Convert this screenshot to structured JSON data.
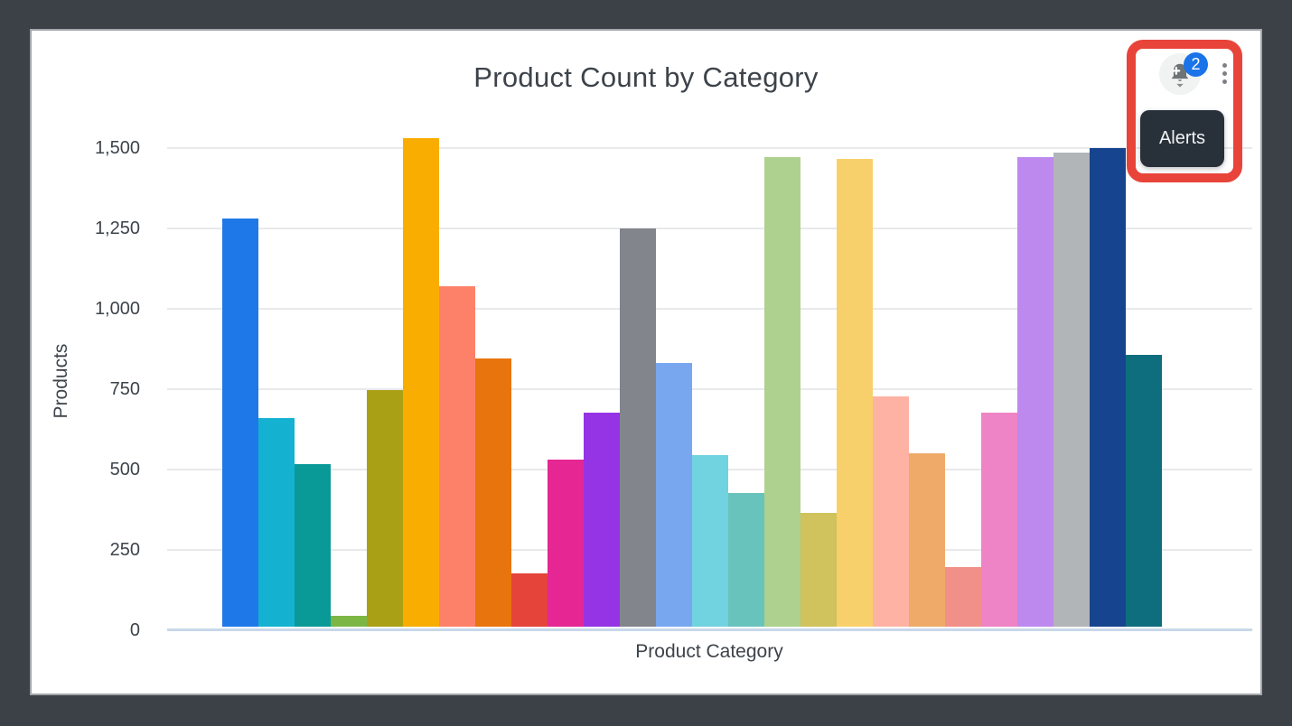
{
  "window": {
    "frame_color": "#3b4146",
    "card_bg": "#ffffff"
  },
  "card": {
    "title": "Product Count by Category"
  },
  "toolbar": {
    "alerts_button": {
      "icon": "bell-add-icon",
      "badge_count": "2",
      "tooltip": "Alerts",
      "badge_color": "#1a73e8"
    },
    "more_menu": {
      "icon": "kebab-menu-icon"
    }
  },
  "annotation": {
    "type": "highlight-box",
    "color": "#e8443a"
  },
  "chart_data": {
    "type": "bar",
    "title": "Product Count by Category",
    "xlabel": "Product Category",
    "ylabel": "Products",
    "ylim": [
      0,
      1500
    ],
    "ytick_labels_top_down": [
      "1,500",
      "1,250",
      "1,000",
      "750",
      "500",
      "250",
      "0"
    ],
    "grid": true,
    "legend": false,
    "x_tick_labels_visible": false,
    "values": [
      1270,
      650,
      505,
      35,
      735,
      1520,
      1060,
      835,
      165,
      520,
      665,
      1240,
      820,
      535,
      415,
      1460,
      355,
      1455,
      715,
      540,
      185,
      665,
      1460,
      1475,
      1490,
      845
    ],
    "colors": [
      "#1f78e8",
      "#14b2d0",
      "#099a97",
      "#7cb746",
      "#aaa015",
      "#f9ad00",
      "#fd8168",
      "#e8740d",
      "#e5443a",
      "#e52693",
      "#9434e4",
      "#82858c",
      "#78a7f0",
      "#71d2e0",
      "#69c3bd",
      "#aed18f",
      "#d0c25c",
      "#f8d06b",
      "#feb2a4",
      "#efaa69",
      "#f19089",
      "#ee83c5",
      "#bd89ee",
      "#b2b5b8",
      "#17448f",
      "#0e6e7e"
    ]
  }
}
